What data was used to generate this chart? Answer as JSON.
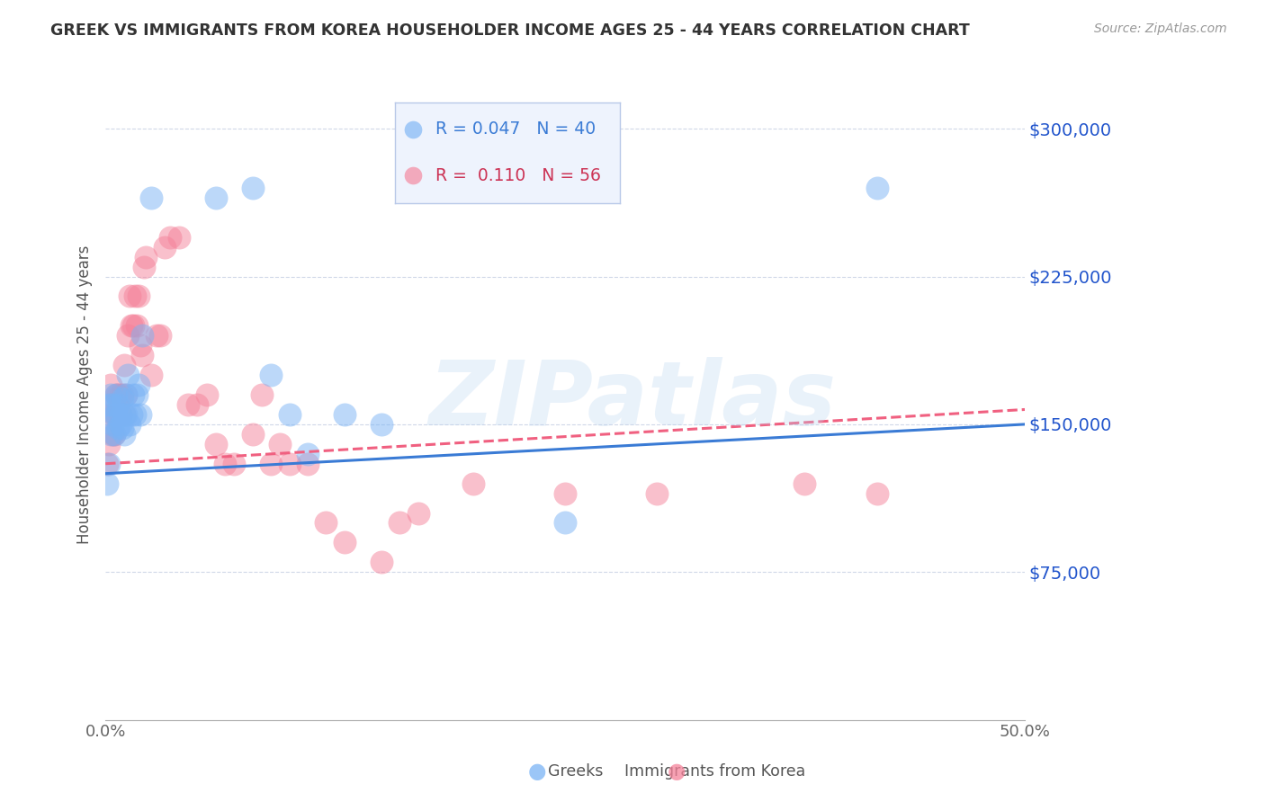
{
  "title": "GREEK VS IMMIGRANTS FROM KOREA HOUSEHOLDER INCOME AGES 25 - 44 YEARS CORRELATION CHART",
  "source": "Source: ZipAtlas.com",
  "ylabel": "Householder Income Ages 25 - 44 years",
  "xlim": [
    0.0,
    0.5
  ],
  "ylim": [
    0,
    330000
  ],
  "yticks": [
    75000,
    150000,
    225000,
    300000
  ],
  "ytick_labels": [
    "$75,000",
    "$150,000",
    "$225,000",
    "$300,000"
  ],
  "xticks": [
    0.0,
    0.1,
    0.2,
    0.3,
    0.4,
    0.5
  ],
  "xtick_labels": [
    "0.0%",
    "",
    "",
    "",
    "",
    "50.0%"
  ],
  "greek_R": 0.047,
  "greek_N": 40,
  "korea_R": 0.11,
  "korea_N": 56,
  "greek_color": "#7ab3f5",
  "korea_color": "#f5829a",
  "greek_line_color": "#3a7bd5",
  "korea_line_color": "#f06080",
  "background_color": "#ffffff",
  "grid_color": "#d0d8e8",
  "title_color": "#333333",
  "axis_label_color": "#555555",
  "tick_color_y": "#2255cc",
  "tick_color_x": "#666666",
  "greek_scatter_x": [
    0.001,
    0.002,
    0.002,
    0.003,
    0.003,
    0.004,
    0.004,
    0.005,
    0.005,
    0.006,
    0.006,
    0.007,
    0.007,
    0.008,
    0.008,
    0.009,
    0.009,
    0.01,
    0.01,
    0.011,
    0.011,
    0.012,
    0.013,
    0.014,
    0.015,
    0.016,
    0.017,
    0.018,
    0.019,
    0.02,
    0.025,
    0.06,
    0.08,
    0.09,
    0.1,
    0.11,
    0.13,
    0.15,
    0.25,
    0.42
  ],
  "greek_scatter_y": [
    120000,
    130000,
    160000,
    145000,
    165000,
    150000,
    160000,
    145000,
    155000,
    155000,
    165000,
    148000,
    160000,
    155000,
    150000,
    163000,
    148000,
    145000,
    155000,
    165000,
    155000,
    175000,
    150000,
    155000,
    165000,
    155000,
    165000,
    170000,
    155000,
    195000,
    265000,
    265000,
    270000,
    175000,
    155000,
    135000,
    155000,
    150000,
    100000,
    270000
  ],
  "korea_scatter_x": [
    0.001,
    0.002,
    0.003,
    0.003,
    0.004,
    0.004,
    0.005,
    0.005,
    0.006,
    0.006,
    0.007,
    0.008,
    0.008,
    0.009,
    0.01,
    0.01,
    0.011,
    0.012,
    0.013,
    0.014,
    0.015,
    0.016,
    0.017,
    0.018,
    0.019,
    0.02,
    0.021,
    0.022,
    0.025,
    0.028,
    0.03,
    0.032,
    0.035,
    0.04,
    0.045,
    0.05,
    0.055,
    0.06,
    0.065,
    0.07,
    0.08,
    0.085,
    0.09,
    0.095,
    0.1,
    0.11,
    0.12,
    0.13,
    0.15,
    0.16,
    0.17,
    0.2,
    0.25,
    0.3,
    0.38,
    0.42
  ],
  "korea_scatter_y": [
    130000,
    140000,
    155000,
    170000,
    145000,
    160000,
    145000,
    155000,
    165000,
    155000,
    165000,
    155000,
    165000,
    165000,
    155000,
    180000,
    165000,
    195000,
    215000,
    200000,
    200000,
    215000,
    200000,
    215000,
    190000,
    185000,
    230000,
    235000,
    175000,
    195000,
    195000,
    240000,
    245000,
    245000,
    160000,
    160000,
    165000,
    140000,
    130000,
    130000,
    145000,
    165000,
    130000,
    140000,
    130000,
    130000,
    100000,
    90000,
    80000,
    100000,
    105000,
    120000,
    115000,
    115000,
    120000,
    115000
  ],
  "greek_line_intercept": 125000,
  "greek_line_slope": 50000,
  "korea_line_intercept": 130000,
  "korea_line_slope": 55000
}
